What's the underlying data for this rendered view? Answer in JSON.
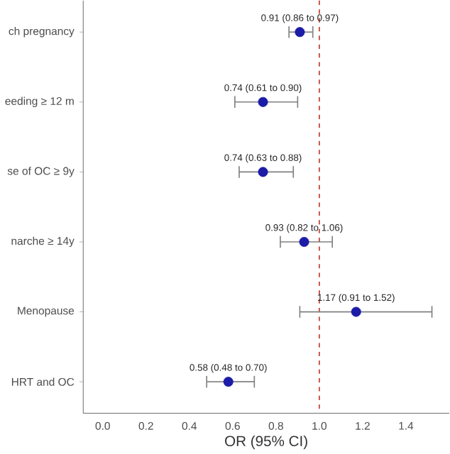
{
  "chart_data": {
    "type": "scatter",
    "orientation": "horizontal",
    "xlabel": "OR (95% CI)",
    "categories": [
      "ch pregnancy",
      "eeding ≥ 12 m",
      "se of OC ≥ 9y",
      "narche ≥ 14y",
      "Menopause",
      "HRT and OC"
    ],
    "series": [
      {
        "color": "#1c1ca8",
        "values": [
          0.91,
          0.74,
          0.74,
          0.93,
          1.17,
          0.58
        ],
        "errors": [
          [
            0.86,
            0.97
          ],
          [
            0.61,
            0.9
          ],
          [
            0.63,
            0.88
          ],
          [
            0.82,
            1.06
          ],
          [
            0.91,
            1.52
          ],
          [
            0.48,
            0.7
          ]
        ],
        "value_labels": [
          "0.91 (0.86 to 0.97)",
          "0.74 (0.61 to 0.90)",
          "0.74 (0.63 to 0.88)",
          "0.93 (0.82 to 1.06)",
          "1.17 (0.91 to 1.52)",
          "0.58 (0.48 to 0.70)"
        ]
      }
    ],
    "xlim": [
      -0.09,
      1.6
    ],
    "xticks": [
      {
        "value": 0,
        "label": "0.0"
      },
      0.2,
      0.4,
      0.6,
      0.8,
      {
        "value": 1,
        "label": "1.0"
      },
      1.2,
      1.4
    ],
    "ref_lines": [
      {
        "axis": "x",
        "value": 1,
        "color": "#c0392b",
        "line_style": "dashed"
      }
    ]
  }
}
